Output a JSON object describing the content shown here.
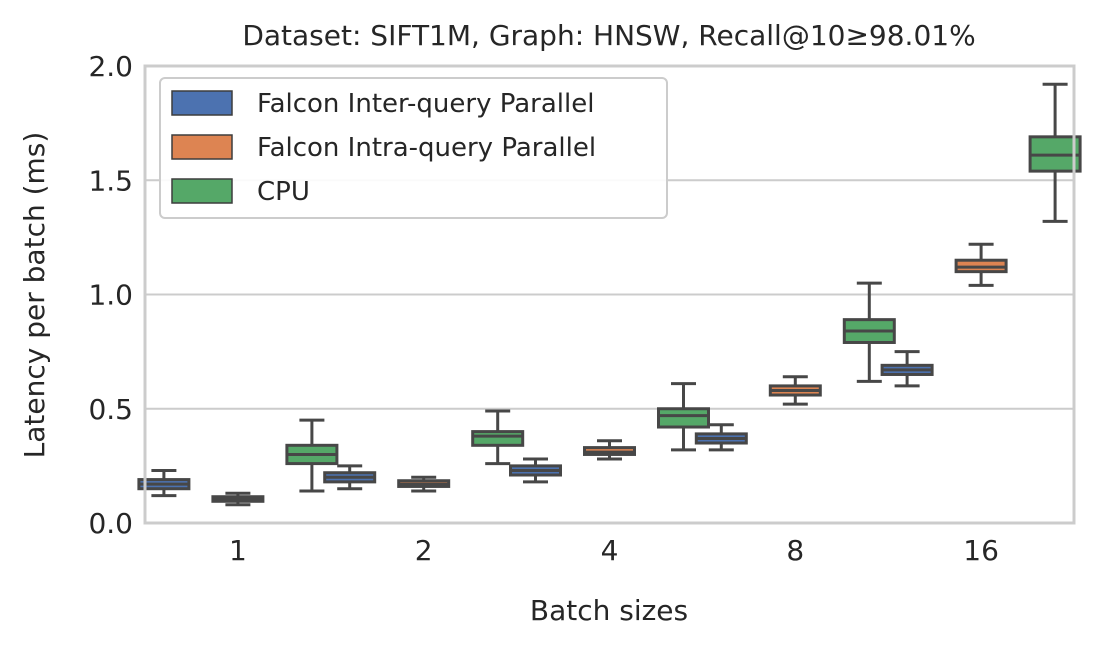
{
  "chart_data": {
    "type": "box",
    "title": "Dataset: SIFT1M, Graph: HNSW, Recall@10≥98.01%",
    "xlabel": "Batch sizes",
    "ylabel": "Latency per batch (ms)",
    "ylim": [
      0.0,
      2.0
    ],
    "yticks": [
      "0.0",
      "0.5",
      "1.0",
      "1.5",
      "2.0"
    ],
    "categories": [
      "1",
      "2",
      "4",
      "8",
      "16"
    ],
    "grid": "horizontal",
    "legend_position": "top-left",
    "series": [
      {
        "name": "Falcon Inter-query Parallel",
        "color": "#4c72b0",
        "boxes": [
          {
            "min": 0.12,
            "q1": 0.15,
            "median": 0.17,
            "q3": 0.19,
            "max": 0.23
          },
          {
            "min": 0.15,
            "q1": 0.18,
            "median": 0.2,
            "q3": 0.22,
            "max": 0.25
          },
          {
            "min": 0.18,
            "q1": 0.21,
            "median": 0.23,
            "q3": 0.25,
            "max": 0.28
          },
          {
            "min": 0.32,
            "q1": 0.35,
            "median": 0.37,
            "q3": 0.39,
            "max": 0.43
          },
          {
            "min": 0.6,
            "q1": 0.65,
            "median": 0.67,
            "q3": 0.69,
            "max": 0.75
          }
        ]
      },
      {
        "name": "Falcon Intra-query Parallel",
        "color": "#dd8452",
        "boxes": [
          {
            "min": 0.08,
            "q1": 0.095,
            "median": 0.105,
            "q3": 0.115,
            "max": 0.13
          },
          {
            "min": 0.14,
            "q1": 0.16,
            "median": 0.17,
            "q3": 0.185,
            "max": 0.2
          },
          {
            "min": 0.28,
            "q1": 0.3,
            "median": 0.31,
            "q3": 0.33,
            "max": 0.36
          },
          {
            "min": 0.52,
            "q1": 0.56,
            "median": 0.58,
            "q3": 0.6,
            "max": 0.64
          },
          {
            "min": 1.04,
            "q1": 1.1,
            "median": 1.12,
            "q3": 1.15,
            "max": 1.22
          }
        ]
      },
      {
        "name": "CPU",
        "color": "#55a868",
        "boxes": [
          {
            "min": 0.14,
            "q1": 0.26,
            "median": 0.3,
            "q3": 0.34,
            "max": 0.45
          },
          {
            "min": 0.26,
            "q1": 0.34,
            "median": 0.38,
            "q3": 0.4,
            "max": 0.49
          },
          {
            "min": 0.32,
            "q1": 0.42,
            "median": 0.47,
            "q3": 0.5,
            "max": 0.61
          },
          {
            "min": 0.62,
            "q1": 0.79,
            "median": 0.84,
            "q3": 0.89,
            "max": 1.05
          },
          {
            "min": 1.32,
            "q1": 1.54,
            "median": 1.61,
            "q3": 1.69,
            "max": 1.92
          }
        ]
      }
    ]
  }
}
